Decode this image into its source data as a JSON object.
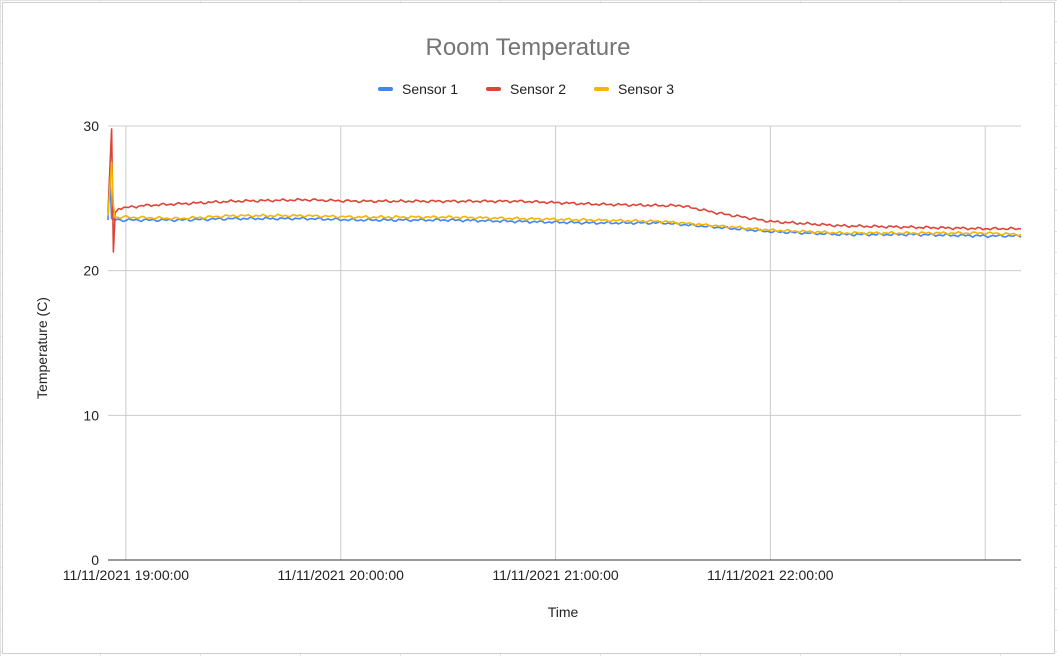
{
  "chart_data": {
    "type": "line",
    "title": "Room Temperature",
    "xlabel": "Time",
    "ylabel": "Temperature (C)",
    "x_start": "11/11/2021 18:55:00",
    "x_end": "11/11/2021 23:10:00",
    "ylim": [
      0,
      30
    ],
    "y_ticks": [
      "0",
      "10",
      "20",
      "30"
    ],
    "x_ticks": [
      {
        "time": "11/11/2021 19:00:00",
        "label": "11/11/2021 19:00:00"
      },
      {
        "time": "11/11/2021 20:00:00",
        "label": "11/11/2021 20:00:00"
      },
      {
        "time": "11/11/2021 21:00:00",
        "label": "11/11/2021 21:00:00"
      },
      {
        "time": "11/11/2021 22:00:00",
        "label": "11/11/2021 22:00:00"
      },
      {
        "time": "11/11/2021 23:00:00",
        "label": ""
      }
    ],
    "grid": true,
    "legend_position": "top",
    "series": [
      {
        "name": "Sensor 1",
        "color": "#4285F4",
        "points": [
          [
            "11/11/2021 18:55:00",
            23.5
          ],
          [
            "11/11/2021 18:55:30",
            26.5
          ],
          [
            "11/11/2021 18:56:00",
            23.6
          ],
          [
            "11/11/2021 18:57:00",
            23.5
          ],
          [
            "11/11/2021 19:00:00",
            23.5
          ],
          [
            "11/11/2021 19:15:00",
            23.5
          ],
          [
            "11/11/2021 19:30:00",
            23.6
          ],
          [
            "11/11/2021 19:50:00",
            23.6
          ],
          [
            "11/11/2021 20:05:00",
            23.5
          ],
          [
            "11/11/2021 20:30:00",
            23.5
          ],
          [
            "11/11/2021 20:50:00",
            23.4
          ],
          [
            "11/11/2021 21:10:00",
            23.3
          ],
          [
            "11/11/2021 21:30:00",
            23.3
          ],
          [
            "11/11/2021 21:45:00",
            23.0
          ],
          [
            "11/11/2021 22:00:00",
            22.7
          ],
          [
            "11/11/2021 22:20:00",
            22.5
          ],
          [
            "11/11/2021 22:40:00",
            22.5
          ],
          [
            "11/11/2021 23:00:00",
            22.4
          ],
          [
            "11/11/2021 23:10:00",
            22.4
          ]
        ]
      },
      {
        "name": "Sensor 2",
        "color": "#DB4437",
        "points": [
          [
            "11/11/2021 18:55:00",
            24.0
          ],
          [
            "11/11/2021 18:56:00",
            29.8
          ],
          [
            "11/11/2021 18:56:30",
            21.3
          ],
          [
            "11/11/2021 18:57:00",
            24.0
          ],
          [
            "11/11/2021 18:58:00",
            24.3
          ],
          [
            "11/11/2021 19:05:00",
            24.5
          ],
          [
            "11/11/2021 19:30:00",
            24.8
          ],
          [
            "11/11/2021 19:50:00",
            24.9
          ],
          [
            "11/11/2021 20:05:00",
            24.8
          ],
          [
            "11/11/2021 20:30:00",
            24.8
          ],
          [
            "11/11/2021 20:50:00",
            24.8
          ],
          [
            "11/11/2021 21:10:00",
            24.6
          ],
          [
            "11/11/2021 21:30:00",
            24.5
          ],
          [
            "11/11/2021 21:35:00",
            24.5
          ],
          [
            "11/11/2021 21:45:00",
            24.0
          ],
          [
            "11/11/2021 22:00:00",
            23.4
          ],
          [
            "11/11/2021 22:20:00",
            23.1
          ],
          [
            "11/11/2021 22:40:00",
            23.0
          ],
          [
            "11/11/2021 23:00:00",
            22.9
          ],
          [
            "11/11/2021 23:10:00",
            22.9
          ]
        ]
      },
      {
        "name": "Sensor 3",
        "color": "#F4B400",
        "points": [
          [
            "11/11/2021 18:55:00",
            23.8
          ],
          [
            "11/11/2021 18:56:00",
            27.5
          ],
          [
            "11/11/2021 18:56:30",
            24.5
          ],
          [
            "11/11/2021 18:57:00",
            23.7
          ],
          [
            "11/11/2021 19:00:00",
            23.7
          ],
          [
            "11/11/2021 19:15:00",
            23.6
          ],
          [
            "11/11/2021 19:30:00",
            23.8
          ],
          [
            "11/11/2021 19:50:00",
            23.8
          ],
          [
            "11/11/2021 20:05:00",
            23.7
          ],
          [
            "11/11/2021 20:30:00",
            23.7
          ],
          [
            "11/11/2021 20:50:00",
            23.6
          ],
          [
            "11/11/2021 21:10:00",
            23.5
          ],
          [
            "11/11/2021 21:30:00",
            23.4
          ],
          [
            "11/11/2021 21:45:00",
            23.1
          ],
          [
            "11/11/2021 22:00:00",
            22.8
          ],
          [
            "11/11/2021 22:20:00",
            22.6
          ],
          [
            "11/11/2021 22:40:00",
            22.6
          ],
          [
            "11/11/2021 23:00:00",
            22.6
          ],
          [
            "11/11/2021 23:10:00",
            22.5
          ]
        ]
      }
    ]
  }
}
